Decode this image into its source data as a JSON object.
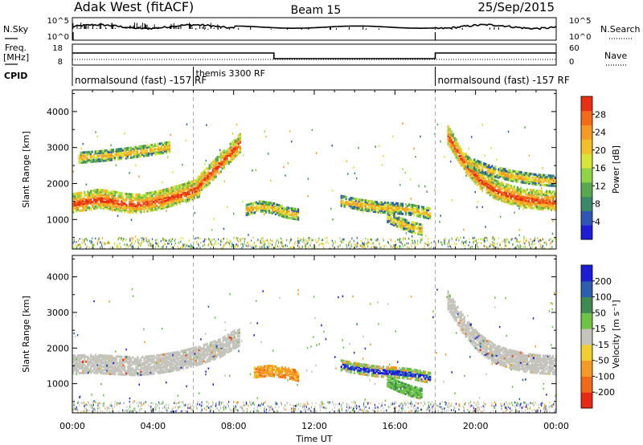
{
  "header": {
    "site": "Adak West (fitACF)",
    "beam": "Beam 15",
    "date": "25/Sep/2015"
  },
  "strips": {
    "nsky": {
      "label": "N.Sky",
      "right_label": "N.Search",
      "left_ticks": [
        "10^5",
        "10^0"
      ],
      "right_ticks": [
        "10^5",
        "10^0"
      ]
    },
    "freq": {
      "label_line1": "Freq.",
      "label_line2": "[MHz]",
      "right_label": "Nave",
      "left_ticks": [
        "18",
        "8"
      ],
      "right_ticks": [
        "60",
        "0"
      ]
    },
    "cpid": {
      "label": "CPID",
      "segments": [
        {
          "start_h": 0,
          "end_h": 6,
          "text": "normalsound (fast) -157 RF"
        },
        {
          "start_h": 6,
          "end_h": 18,
          "text": "themis 3300 RF"
        },
        {
          "start_h": 18,
          "end_h": 24,
          "text": "normalsound (fast) -157 RF"
        }
      ]
    }
  },
  "chart_data": [
    {
      "type": "heatmap",
      "name": "power",
      "ylabel": "Slant Range [km]",
      "ylim": [
        180,
        4600
      ],
      "yticks": [
        1000,
        2000,
        3000,
        4000
      ],
      "colorbar": {
        "label": "Power [dB]",
        "ticks": [
          "4",
          "8",
          "12",
          "16",
          "20",
          "24",
          "28"
        ],
        "colors": [
          "#1d1dd8",
          "#2f55b5",
          "#3a8a6a",
          "#5aa84e",
          "#8fd445",
          "#d9e436",
          "#f0bf2a",
          "#f59a22",
          "#f56a18",
          "#ea2f12"
        ]
      },
      "features": [
        {
          "desc": "main band",
          "t_start": 0.0,
          "t_end": 6.3,
          "range_km": [
            1420,
            1480,
            1540,
            1500,
            1430,
            1400,
            1450,
            1520,
            1620,
            1720,
            1860
          ],
          "level": "high"
        },
        {
          "desc": "upper echo",
          "t_start": 0.3,
          "t_end": 4.8,
          "range_km": [
            2700,
            2750,
            2820,
            2900,
            3000
          ],
          "level": "mid"
        },
        {
          "desc": "rising streak",
          "t_start": 6.2,
          "t_end": 8.3,
          "range_km": [
            1900,
            2300,
            2700,
            3100
          ],
          "level": "high"
        },
        {
          "desc": "patch",
          "t_start": 8.6,
          "t_end": 11.2,
          "range_km": [
            1250,
            1350,
            1300,
            1180,
            1120
          ],
          "level": "mid"
        },
        {
          "desc": "patch",
          "t_start": 13.3,
          "t_end": 17.7,
          "range_km": [
            1500,
            1400,
            1330,
            1300,
            1250,
            1150
          ],
          "level": "mid"
        },
        {
          "desc": "lower streak",
          "t_start": 15.6,
          "t_end": 17.3,
          "range_km": [
            1050,
            900,
            780,
            700
          ],
          "level": "mid"
        },
        {
          "desc": "main band",
          "t_start": 18.6,
          "t_end": 24.0,
          "range_km": [
            3300,
            2600,
            2100,
            1800,
            1650,
            1550,
            1500,
            1480
          ],
          "level": "high"
        },
        {
          "desc": "upper echo",
          "t_start": 19.5,
          "t_end": 24.0,
          "range_km": [
            2600,
            2350,
            2200,
            2100,
            2050
          ],
          "level": "mid"
        }
      ]
    },
    {
      "type": "heatmap",
      "name": "velocity",
      "ylabel": "Slant Range [km]",
      "xlabel": "Time UT",
      "xticks": [
        "00:00",
        "04:00",
        "08:00",
        "12:00",
        "16:00",
        "20:00",
        "00:00"
      ],
      "ylim": [
        180,
        4600
      ],
      "yticks": [
        1000,
        2000,
        3000,
        4000
      ],
      "colorbar": {
        "label": "Velocity [m s⁻¹]",
        "ticks": [
          "200",
          "100",
          "50",
          "15",
          "-15",
          "-50",
          "-100",
          "-200"
        ],
        "colors": [
          "#1d1dd8",
          "#2e5eb0",
          "#3e8a50",
          "#6cc345",
          "#c4c4bc",
          "#f0cd30",
          "#f59a22",
          "#f06818",
          "#e82a12"
        ]
      },
      "features": [
        {
          "desc": "ground scatter band",
          "t_start": 0.0,
          "t_end": 8.3,
          "range_km": [
            1500,
            1520,
            1480,
            1450,
            1500,
            1600,
            1750,
            1950,
            2300
          ],
          "level": "zero"
        },
        {
          "desc": "orange patch",
          "t_start": 9.0,
          "t_end": 11.2,
          "range_km": [
            1300,
            1350,
            1300,
            1200
          ],
          "level": "negative"
        },
        {
          "desc": "mixed patch",
          "t_start": 13.3,
          "t_end": 17.7,
          "range_km": [
            1500,
            1400,
            1330,
            1300,
            1250,
            1150
          ],
          "level": "mixed"
        },
        {
          "desc": "green streak",
          "t_start": 15.6,
          "t_end": 17.3,
          "range_km": [
            1050,
            900,
            780,
            700
          ],
          "level": "positive"
        },
        {
          "desc": "ground scatter band",
          "t_start": 18.6,
          "t_end": 24.0,
          "range_km": [
            3300,
            2600,
            2100,
            1800,
            1650,
            1550,
            1500,
            1480
          ],
          "level": "zero"
        }
      ]
    }
  ]
}
